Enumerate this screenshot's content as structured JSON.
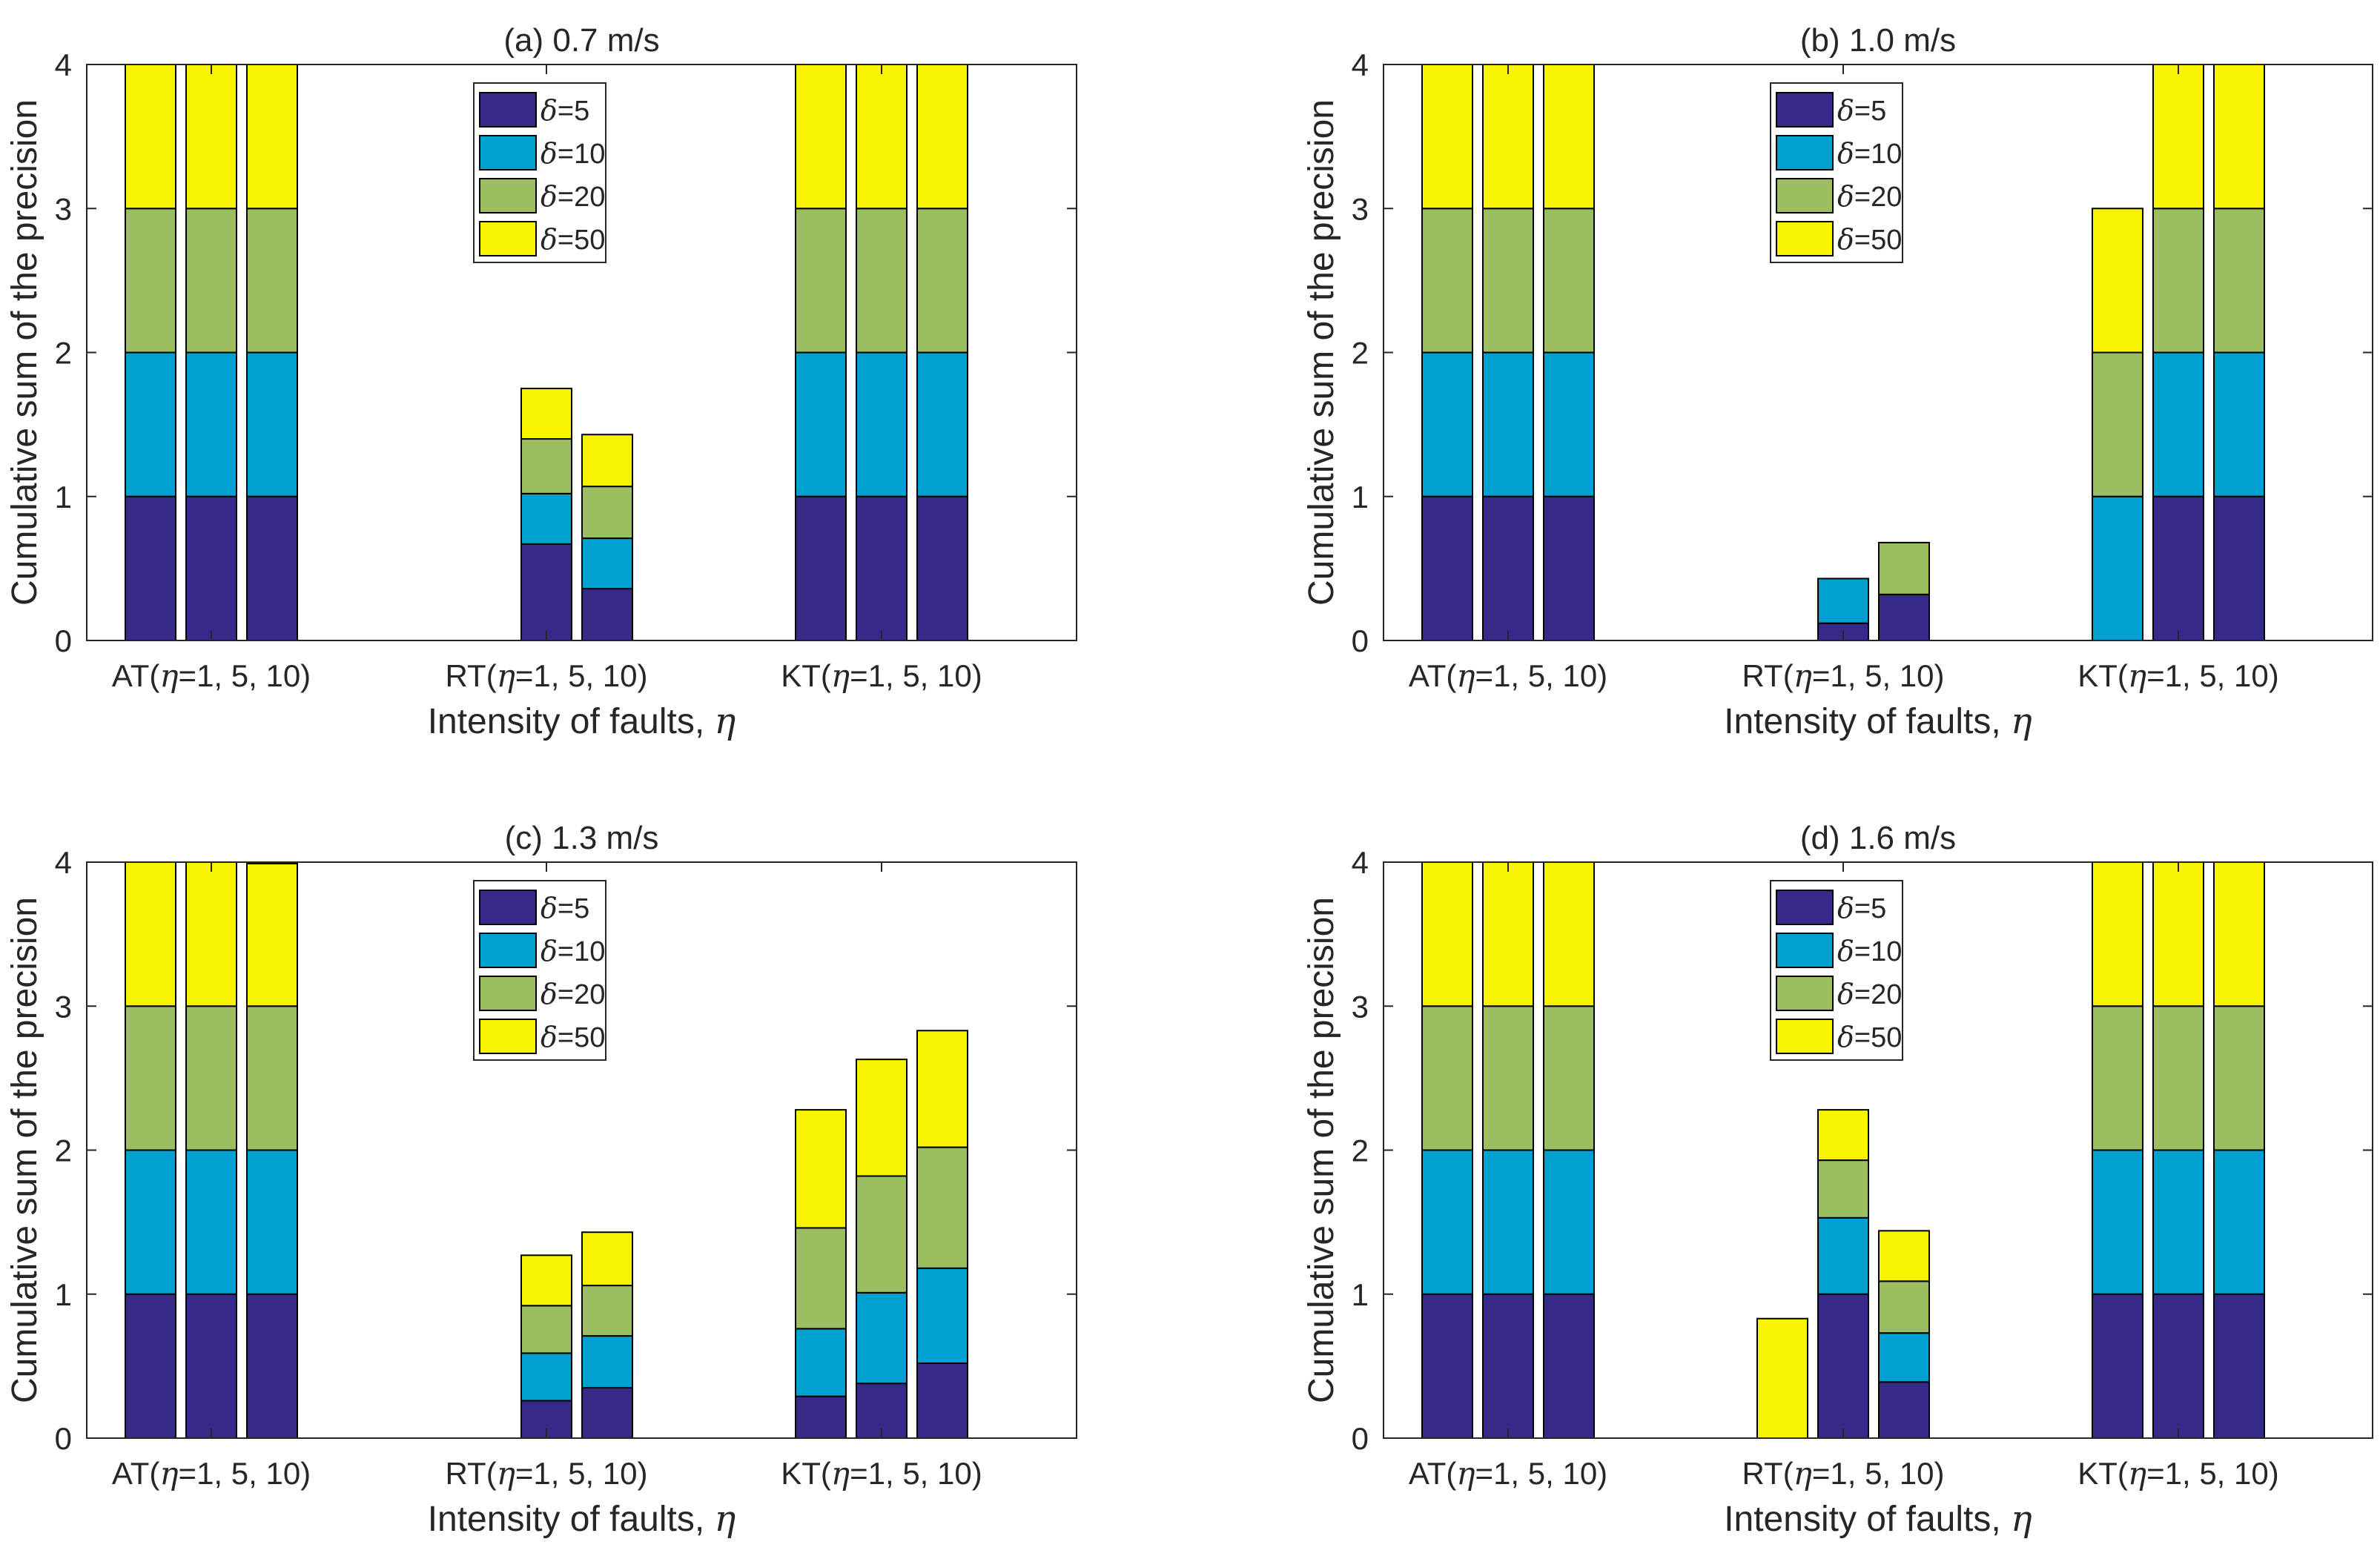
{
  "colors": {
    "d5": "#352a87",
    "d10": "#00a0d1",
    "d20": "#9bbe61",
    "d50": "#f8f400"
  },
  "chart_data": [
    {
      "type": "bar",
      "stacked": true,
      "title": "(a) 0.7 m/s",
      "xlabel": "Intensity of faults, η",
      "xlabel_text": "Intensity of faults, ",
      "xlabel_symbol": "η",
      "ylabel": "Cumulative sum of the precision",
      "ylim": [
        0,
        4
      ],
      "yticks": [
        "0",
        "1",
        "2",
        "3",
        "4"
      ],
      "group_labels": [
        {
          "prefix": "AT(",
          "symbol": "η",
          "suffix": "=1, 5, 10)"
        },
        {
          "prefix": "RT(",
          "symbol": "η",
          "suffix": "=1, 5, 10)"
        },
        {
          "prefix": "KT(",
          "symbol": "η",
          "suffix": "=1, 5, 10)"
        }
      ],
      "categories": [
        "AT η=1",
        "AT η=5",
        "AT η=10",
        "RT η=1",
        "RT η=5",
        "RT η=10",
        "KT η=1",
        "KT η=5",
        "KT η=10"
      ],
      "legend": [
        {
          "symbol": "δ",
          "text": "=5"
        },
        {
          "symbol": "δ",
          "text": "=10"
        },
        {
          "symbol": "δ",
          "text": "=20"
        },
        {
          "symbol": "δ",
          "text": "=50"
        }
      ],
      "legend_position": "top-center",
      "series": [
        {
          "name": "δ=5",
          "values": [
            1,
            1,
            1,
            0,
            0.67,
            0.36,
            1,
            1,
            1
          ]
        },
        {
          "name": "δ=10",
          "values": [
            1,
            1,
            1,
            0,
            0.35,
            0.35,
            1,
            1,
            1
          ]
        },
        {
          "name": "δ=20",
          "values": [
            1,
            1,
            1,
            0,
            0.38,
            0.36,
            1,
            1,
            1
          ]
        },
        {
          "name": "δ=50",
          "values": [
            1,
            1,
            1,
            0,
            0.35,
            0.36,
            1,
            1,
            1
          ]
        }
      ]
    },
    {
      "type": "bar",
      "stacked": true,
      "title": "(b) 1.0 m/s",
      "xlabel": "Intensity of faults, η",
      "xlabel_text": "Intensity of faults, ",
      "xlabel_symbol": "η",
      "ylabel": "Cumulative sum of the precision",
      "ylim": [
        0,
        4
      ],
      "yticks": [
        "0",
        "1",
        "2",
        "3",
        "4"
      ],
      "group_labels": [
        {
          "prefix": "AT(",
          "symbol": "η",
          "suffix": "=1, 5, 10)"
        },
        {
          "prefix": "RT(",
          "symbol": "η",
          "suffix": "=1, 5, 10)"
        },
        {
          "prefix": "KT(",
          "symbol": "η",
          "suffix": "=1, 5, 10)"
        }
      ],
      "categories": [
        "AT η=1",
        "AT η=5",
        "AT η=10",
        "RT η=1",
        "RT η=5",
        "RT η=10",
        "KT η=1",
        "KT η=5",
        "KT η=10"
      ],
      "legend": [
        {
          "symbol": "δ",
          "text": "=5"
        },
        {
          "symbol": "δ",
          "text": "=10"
        },
        {
          "symbol": "δ",
          "text": "=20"
        },
        {
          "symbol": "δ",
          "text": "=50"
        }
      ],
      "legend_position": "top-center",
      "series": [
        {
          "name": "δ=5",
          "values": [
            1,
            1,
            1,
            0,
            0.12,
            0.32,
            0,
            1,
            1
          ]
        },
        {
          "name": "δ=10",
          "values": [
            1,
            1,
            1,
            0,
            0.31,
            0,
            1,
            1,
            1
          ]
        },
        {
          "name": "δ=20",
          "values": [
            1,
            1,
            1,
            0,
            0,
            0.36,
            1,
            1,
            1
          ]
        },
        {
          "name": "δ=50",
          "values": [
            1,
            1,
            1,
            0,
            0,
            0,
            1,
            1,
            1
          ]
        }
      ]
    },
    {
      "type": "bar",
      "stacked": true,
      "title": "(c) 1.3 m/s",
      "xlabel": "Intensity of faults, η",
      "xlabel_text": "Intensity of faults, ",
      "xlabel_symbol": "η",
      "ylabel": "Cumulative sum of the precision",
      "ylim": [
        0,
        4
      ],
      "yticks": [
        "0",
        "1",
        "2",
        "3",
        "4"
      ],
      "group_labels": [
        {
          "prefix": "AT(",
          "symbol": "η",
          "suffix": "=1, 5, 10)"
        },
        {
          "prefix": "RT(",
          "symbol": "η",
          "suffix": "=1, 5, 10)"
        },
        {
          "prefix": "KT(",
          "symbol": "η",
          "suffix": "=1, 5, 10)"
        }
      ],
      "categories": [
        "AT η=1",
        "AT η=5",
        "AT η=10",
        "RT η=1",
        "RT η=5",
        "RT η=10",
        "KT η=1",
        "KT η=5",
        "KT η=10"
      ],
      "legend": [
        {
          "symbol": "δ",
          "text": "=5"
        },
        {
          "symbol": "δ",
          "text": "=10"
        },
        {
          "symbol": "δ",
          "text": "=20"
        },
        {
          "symbol": "δ",
          "text": "=50"
        }
      ],
      "legend_position": "top-center",
      "series": [
        {
          "name": "δ=5",
          "values": [
            1,
            1,
            1,
            0,
            0.26,
            0.35,
            0.29,
            0.38,
            0.52
          ]
        },
        {
          "name": "δ=10",
          "values": [
            1,
            1,
            1,
            0,
            0.33,
            0.36,
            0.47,
            0.63,
            0.66
          ]
        },
        {
          "name": "δ=20",
          "values": [
            1,
            1,
            1,
            0,
            0.33,
            0.35,
            0.7,
            0.81,
            0.84
          ]
        },
        {
          "name": "δ=50",
          "values": [
            1,
            1,
            0.99,
            0,
            0.35,
            0.37,
            0.82,
            0.81,
            0.81
          ]
        }
      ]
    },
    {
      "type": "bar",
      "stacked": true,
      "title": "(d) 1.6 m/s",
      "xlabel": "Intensity of faults, η",
      "xlabel_text": "Intensity of faults, ",
      "xlabel_symbol": "η",
      "ylabel": "Cumulative sum of the precision",
      "ylim": [
        0,
        4
      ],
      "yticks": [
        "0",
        "1",
        "2",
        "3",
        "4"
      ],
      "group_labels": [
        {
          "prefix": "AT(",
          "symbol": "η",
          "suffix": "=1, 5, 10)"
        },
        {
          "prefix": "RT(",
          "symbol": "η",
          "suffix": "=1, 5, 10)"
        },
        {
          "prefix": "KT(",
          "symbol": "η",
          "suffix": "=1, 5, 10)"
        }
      ],
      "categories": [
        "AT η=1",
        "AT η=5",
        "AT η=10",
        "RT η=1",
        "RT η=5",
        "RT η=10",
        "KT η=1",
        "KT η=5",
        "KT η=10"
      ],
      "legend": [
        {
          "symbol": "δ",
          "text": "=5"
        },
        {
          "symbol": "δ",
          "text": "=10"
        },
        {
          "symbol": "δ",
          "text": "=20"
        },
        {
          "symbol": "δ",
          "text": "=50"
        }
      ],
      "legend_position": "top-center",
      "series": [
        {
          "name": "δ=5",
          "values": [
            1,
            1,
            1,
            0,
            1,
            0.39,
            1,
            1,
            1
          ]
        },
        {
          "name": "δ=10",
          "values": [
            1,
            1,
            1,
            0,
            0.53,
            0.34,
            1,
            1,
            1
          ]
        },
        {
          "name": "δ=20",
          "values": [
            1,
            1,
            1,
            0,
            0.4,
            0.36,
            1,
            1,
            1
          ]
        },
        {
          "name": "δ=50",
          "values": [
            1,
            1,
            1,
            0.83,
            0.35,
            0.35,
            1,
            1,
            1
          ]
        }
      ]
    }
  ]
}
